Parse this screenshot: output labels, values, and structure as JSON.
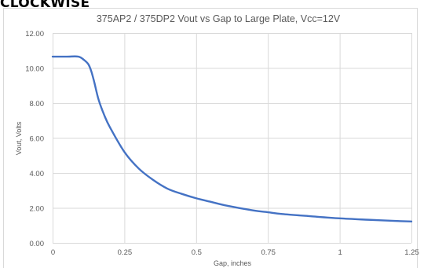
{
  "page": {
    "heading": "CLOCKWISE"
  },
  "colors": {
    "series": "#4472c4",
    "grid": "#d9d9d9",
    "text": "#595959"
  },
  "chart_data": {
    "type": "line",
    "title": "375AP2 / 375DP2 Vout vs Gap to Large Plate, Vcc=12V",
    "xlabel": "Gap, inches",
    "ylabel": "Vout, Volts",
    "xlim": [
      0,
      1.25
    ],
    "ylim": [
      0,
      12
    ],
    "grid": "vertical and horizontal major gridlines",
    "legend": "none",
    "x_ticks": [
      0,
      0.25,
      0.5,
      0.75,
      1,
      1.25
    ],
    "x_tick_labels": [
      "0",
      "0.25",
      "0.5",
      "0.75",
      "1",
      "1.25"
    ],
    "y_ticks": [
      0,
      2,
      4,
      6,
      8,
      10,
      12
    ],
    "y_tick_labels": [
      "0.00",
      "2.00",
      "4.00",
      "6.00",
      "8.00",
      "10.00",
      "12.00"
    ],
    "series": [
      {
        "x": [
          0,
          0.05,
          0.09,
          0.11,
          0.125,
          0.135,
          0.145,
          0.16,
          0.18,
          0.2,
          0.25,
          0.3,
          0.35,
          0.4,
          0.45,
          0.5,
          0.55,
          0.6,
          0.7,
          0.75,
          0.8,
          0.9,
          1.0,
          1.1,
          1.2,
          1.25
        ],
        "y": [
          10.65,
          10.65,
          10.65,
          10.45,
          10.2,
          9.8,
          9.2,
          8.2,
          7.3,
          6.6,
          5.2,
          4.25,
          3.6,
          3.1,
          2.8,
          2.55,
          2.35,
          2.15,
          1.85,
          1.75,
          1.65,
          1.52,
          1.4,
          1.32,
          1.25,
          1.22
        ]
      }
    ]
  }
}
